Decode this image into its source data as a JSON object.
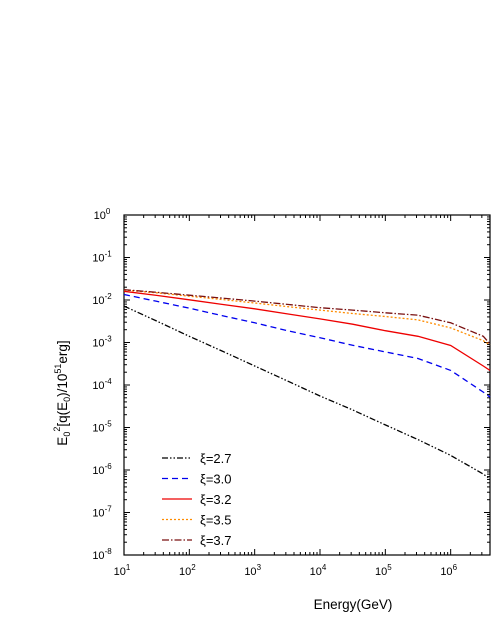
{
  "chart_data": {
    "type": "line",
    "title": "",
    "xlabel": "Energy(GeV)",
    "ylabel": "E0^2[q(E0)/10^51erg]",
    "xscale": "log",
    "yscale": "log",
    "xlim": [
      10,
      4000000
    ],
    "ylim": [
      1e-08,
      1
    ],
    "x_ticks": [
      "10^1",
      "10^2",
      "10^3",
      "10^4",
      "10^5",
      "10^6"
    ],
    "y_ticks": [
      "10^0",
      "10^-1",
      "10^-2",
      "10^-3",
      "10^-4",
      "10^-5",
      "10^-6",
      "10^-7",
      "10^-8"
    ],
    "grid": false,
    "legend_position": "bottom-left",
    "series": [
      {
        "name": "ξ=2.7",
        "color": "#000000",
        "x": [
          10,
          31.6,
          100,
          316,
          1000,
          3160,
          10000,
          31600,
          100000,
          316000,
          1000000,
          3160000,
          4000000
        ],
        "y": [
          0.0072,
          0.0032,
          0.0014,
          0.00063,
          0.00028,
          0.000125,
          5.5e-05,
          2.6e-05,
          1.15e-05,
          5.2e-06,
          2.2e-06,
          8e-07,
          6.2e-07
        ]
      },
      {
        "name": "ξ=3.0",
        "color": "#0000ee",
        "x": [
          10,
          31.6,
          100,
          316,
          1000,
          3160,
          10000,
          31600,
          100000,
          316000,
          1000000,
          3160000,
          4000000
        ],
        "y": [
          0.0135,
          0.0093,
          0.0064,
          0.0043,
          0.0029,
          0.0019,
          0.0013,
          0.00086,
          0.0006,
          0.00042,
          0.00022,
          6.8e-05,
          5.2e-05
        ]
      },
      {
        "name": "ξ=3.2",
        "color": "#ee0000",
        "x": [
          10,
          31.6,
          100,
          316,
          1000,
          3160,
          10000,
          31600,
          100000,
          316000,
          1000000,
          3160000,
          4000000
        ],
        "y": [
          0.016,
          0.0128,
          0.0101,
          0.0079,
          0.0062,
          0.0047,
          0.0036,
          0.0027,
          0.0019,
          0.0014,
          0.00085,
          0.00028,
          0.00022
        ]
      },
      {
        "name": "ξ=3.5",
        "color": "#ff8c00",
        "x": [
          10,
          31.6,
          100,
          316,
          1000,
          3160,
          10000,
          31600,
          100000,
          316000,
          1000000,
          3160000,
          4000000
        ],
        "y": [
          0.0172,
          0.0148,
          0.0123,
          0.0103,
          0.0085,
          0.007,
          0.0058,
          0.0048,
          0.0041,
          0.0034,
          0.0022,
          0.0011,
          0.00088
        ]
      },
      {
        "name": "ξ=3.7",
        "color": "#7a1010",
        "x": [
          10,
          31.6,
          100,
          316,
          1000,
          3160,
          10000,
          31600,
          100000,
          316000,
          1000000,
          3160000,
          4000000
        ],
        "y": [
          0.0175,
          0.0152,
          0.013,
          0.0111,
          0.0094,
          0.0079,
          0.0066,
          0.0058,
          0.005,
          0.0044,
          0.0029,
          0.0014,
          0.00092
        ]
      }
    ]
  }
}
